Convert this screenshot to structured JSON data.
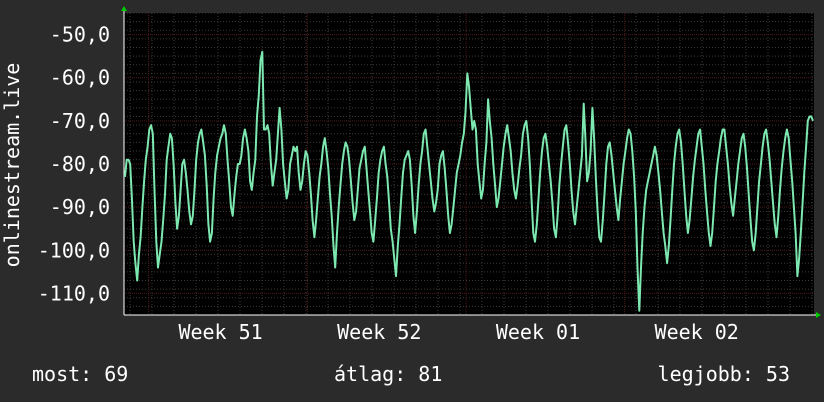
{
  "chart_data": {
    "type": "line",
    "ylabel": "onlinestream.live",
    "ylim": [
      -115,
      -45
    ],
    "yticks": [
      -50,
      -60,
      -70,
      -80,
      -90,
      -100,
      -110
    ],
    "y_tick_labels": [
      "-50,0",
      "-60,0",
      "-70,0",
      "-80,0",
      "-90,0",
      "-100,0",
      "-110,0"
    ],
    "x_tick_labels": [
      "Week 51",
      "Week 52",
      "Week 01",
      "Week 02"
    ],
    "x_tick_positions": [
      0.14,
      0.37,
      0.6,
      0.83
    ],
    "grid": true,
    "colors": {
      "background": "#2b2b2b",
      "plot_area": "#000000",
      "line": "#7de8b0",
      "axis_marker": "#00cc00",
      "major_grid": "#4a1a1a",
      "minor_grid": "#3a3a3a"
    },
    "series": [
      {
        "values": [
          -83,
          -79,
          -79,
          -80,
          -88,
          -98,
          -103,
          -107,
          -101,
          -97,
          -90,
          -84,
          -79,
          -76,
          -72,
          -71,
          -73,
          -86,
          -98,
          -104,
          -101,
          -98,
          -93,
          -87,
          -79,
          -76,
          -73,
          -74,
          -80,
          -89,
          -95,
          -92,
          -86,
          -80,
          -79,
          -82,
          -86,
          -91,
          -94,
          -92,
          -86,
          -79,
          -75,
          -73,
          -72,
          -75,
          -78,
          -85,
          -94,
          -98,
          -96,
          -88,
          -82,
          -78,
          -76,
          -74,
          -73,
          -71,
          -73,
          -79,
          -84,
          -90,
          -92,
          -87,
          -83,
          -80,
          -80,
          -78,
          -74,
          -72,
          -74,
          -77,
          -84,
          -86,
          -82,
          -79,
          -69,
          -64,
          -56,
          -54,
          -72,
          -72,
          -71,
          -73,
          -80,
          -85,
          -82,
          -79,
          -73,
          -67,
          -72,
          -80,
          -84,
          -88,
          -86,
          -80,
          -78,
          -76,
          -77,
          -76,
          -82,
          -86,
          -84,
          -80,
          -77,
          -78,
          -82,
          -87,
          -93,
          -97,
          -93,
          -88,
          -83,
          -80,
          -76,
          -74,
          -77,
          -81,
          -87,
          -92,
          -99,
          -104,
          -96,
          -90,
          -85,
          -80,
          -77,
          -75,
          -76,
          -79,
          -84,
          -89,
          -93,
          -91,
          -86,
          -81,
          -79,
          -77,
          -76,
          -81,
          -86,
          -91,
          -96,
          -98,
          -93,
          -88,
          -82,
          -79,
          -77,
          -76,
          -80,
          -83,
          -89,
          -95,
          -98,
          -102,
          -106,
          -99,
          -94,
          -88,
          -82,
          -79,
          -78,
          -77,
          -79,
          -85,
          -92,
          -96,
          -91,
          -85,
          -80,
          -77,
          -73,
          -72,
          -76,
          -80,
          -84,
          -88,
          -91,
          -89,
          -86,
          -80,
          -78,
          -77,
          -81,
          -86,
          -92,
          -96,
          -94,
          -90,
          -86,
          -82,
          -80,
          -78,
          -75,
          -73,
          -68,
          -59,
          -62,
          -67,
          -72,
          -70,
          -72,
          -80,
          -84,
          -88,
          -86,
          -80,
          -75,
          -65,
          -70,
          -74,
          -80,
          -85,
          -90,
          -88,
          -84,
          -80,
          -76,
          -73,
          -71,
          -74,
          -77,
          -82,
          -86,
          -88,
          -85,
          -81,
          -78,
          -73,
          -71,
          -70,
          -74,
          -80,
          -88,
          -96,
          -98,
          -94,
          -88,
          -82,
          -77,
          -74,
          -73,
          -76,
          -80,
          -84,
          -89,
          -95,
          -97,
          -92,
          -85,
          -80,
          -76,
          -72,
          -71,
          -75,
          -80,
          -86,
          -91,
          -94,
          -90,
          -86,
          -82,
          -78,
          -66,
          -74,
          -84,
          -82,
          -77,
          -67,
          -74,
          -83,
          -91,
          -97,
          -98,
          -93,
          -87,
          -80,
          -76,
          -75,
          -78,
          -82,
          -86,
          -90,
          -93,
          -88,
          -84,
          -80,
          -77,
          -74,
          -72,
          -73,
          -77,
          -83,
          -91,
          -104,
          -114,
          -104,
          -96,
          -90,
          -86,
          -84,
          -82,
          -80,
          -78,
          -76,
          -78,
          -82,
          -86,
          -91,
          -96,
          -99,
          -103,
          -99,
          -93,
          -86,
          -80,
          -76,
          -73,
          -72,
          -75,
          -80,
          -86,
          -92,
          -96,
          -93,
          -88,
          -83,
          -79,
          -76,
          -73,
          -72,
          -76,
          -80,
          -86,
          -91,
          -96,
          -99,
          -96,
          -90,
          -84,
          -80,
          -77,
          -74,
          -72,
          -72,
          -76,
          -80,
          -85,
          -89,
          -92,
          -88,
          -84,
          -80,
          -77,
          -74,
          -73,
          -76,
          -81,
          -87,
          -93,
          -98,
          -100,
          -96,
          -90,
          -84,
          -80,
          -76,
          -73,
          -72,
          -75,
          -79,
          -84,
          -89,
          -94,
          -97,
          -92,
          -86,
          -81,
          -77,
          -74,
          -72,
          -74,
          -79,
          -84,
          -90,
          -96,
          -106,
          -102,
          -96,
          -89,
          -82,
          -76,
          -70,
          -69,
          -69,
          -70
        ]
      }
    ]
  },
  "stats": {
    "current": "most: 69",
    "average": "átlag: 81",
    "best": "legjobb: 53"
  }
}
